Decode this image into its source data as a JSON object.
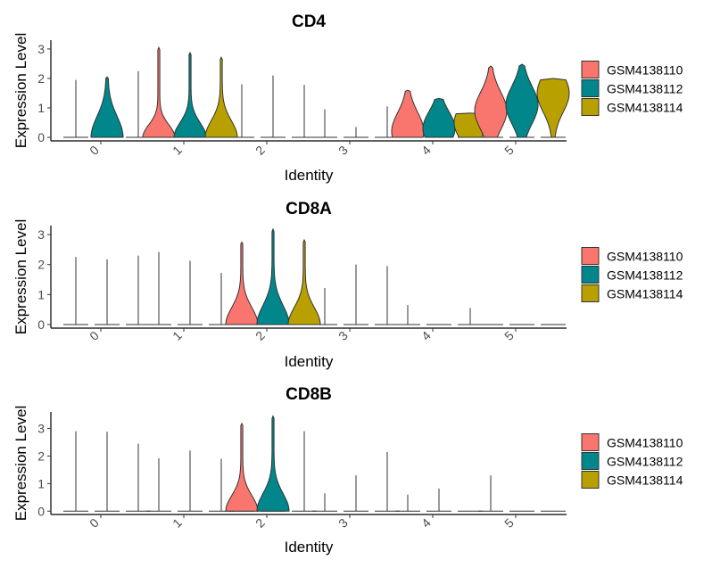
{
  "chart_data": [
    {
      "type": "violin",
      "title": "CD4",
      "xlabel": "Identity",
      "ylabel": "Expression Level",
      "categories": [
        "0",
        "1",
        "2",
        "3",
        "4",
        "5"
      ],
      "y_ticks": [
        "0",
        "1",
        "2",
        "3"
      ],
      "ylim": [
        -0.12,
        3.3
      ],
      "legend": {
        "placement": "right",
        "entries": [
          "GSM4138110",
          "GSM4138112",
          "GSM4138114"
        ]
      },
      "series": [
        {
          "name": "GSM4138110",
          "color": "#F8766D",
          "max": [
            1.95,
            3.05,
            1.8,
            0.95,
            1.6,
            2.42
          ],
          "peak": [
            0,
            0,
            0,
            0,
            0.2,
            0.9
          ],
          "spread": [
            0.4,
            0.6,
            0.3,
            0.3,
            0.9,
            0.9
          ]
        },
        {
          "name": "GSM4138112",
          "color": "#00868B",
          "max": [
            2.05,
            2.88,
            2.1,
            0.35,
            1.32,
            2.48
          ],
          "peak": [
            0,
            0,
            0,
            0,
            0.3,
            1.1
          ],
          "spread": [
            1.0,
            0.7,
            0.3,
            0.3,
            0.8,
            0.9
          ]
        },
        {
          "name": "GSM4138114",
          "color": "#B8A000",
          "max": [
            2.25,
            2.72,
            1.78,
            1.05,
            0.82,
            2.0
          ],
          "peak": [
            0,
            0,
            0,
            0,
            0.5,
            1.5
          ],
          "spread": [
            0.4,
            0.8,
            0.3,
            0.3,
            0.8,
            0.9
          ]
        }
      ]
    },
    {
      "type": "violin",
      "title": "CD8A",
      "xlabel": "Identity",
      "ylabel": "Expression Level",
      "categories": [
        "0",
        "1",
        "2",
        "3",
        "4",
        "5"
      ],
      "y_ticks": [
        "0",
        "1",
        "2",
        "3"
      ],
      "ylim": [
        -0.12,
        3.3
      ],
      "legend": {
        "placement": "right",
        "entries": [
          "GSM4138110",
          "GSM4138112",
          "GSM4138114"
        ]
      },
      "series": [
        {
          "name": "GSM4138110",
          "color": "#F8766D",
          "max": [
            2.25,
            2.42,
            2.75,
            1.22,
            0.65,
            0
          ],
          "peak": [
            0,
            0,
            0,
            0,
            0,
            0
          ],
          "spread": [
            0.3,
            0.3,
            0.8,
            0.3,
            0.3,
            0.3
          ]
        },
        {
          "name": "GSM4138112",
          "color": "#00868B",
          "max": [
            2.17,
            2.13,
            3.18,
            2.0,
            0,
            0
          ],
          "peak": [
            0,
            0,
            0,
            0,
            0,
            0
          ],
          "spread": [
            0.3,
            0.3,
            0.9,
            0.3,
            0.3,
            0.3
          ]
        },
        {
          "name": "GSM4138114",
          "color": "#B8A000",
          "max": [
            2.3,
            1.72,
            2.82,
            1.95,
            0.55,
            0
          ],
          "peak": [
            0,
            0,
            0,
            0,
            0,
            0
          ],
          "spread": [
            0.3,
            0.3,
            0.8,
            0.3,
            0.3,
            0.3
          ]
        }
      ]
    },
    {
      "type": "violin",
      "title": "CD8B",
      "xlabel": "Identity",
      "ylabel": "Expression Level",
      "categories": [
        "0",
        "1",
        "2",
        "3",
        "4",
        "5"
      ],
      "y_ticks": [
        "0",
        "1",
        "2",
        "3"
      ],
      "ylim": [
        -0.12,
        3.6
      ],
      "legend": {
        "placement": "right",
        "entries": [
          "GSM4138110",
          "GSM4138112",
          "GSM4138114"
        ]
      },
      "series": [
        {
          "name": "GSM4138110",
          "color": "#F8766D",
          "max": [
            2.9,
            1.92,
            3.18,
            0.65,
            0.6,
            1.3
          ],
          "peak": [
            0,
            0,
            0,
            0,
            0,
            0
          ],
          "spread": [
            0.3,
            0.3,
            0.8,
            0.3,
            0.3,
            0.3
          ]
        },
        {
          "name": "GSM4138112",
          "color": "#00868B",
          "max": [
            2.88,
            2.2,
            3.45,
            1.3,
            0.82,
            0
          ],
          "peak": [
            0,
            0,
            0,
            0,
            0,
            0
          ],
          "spread": [
            0.3,
            0.3,
            0.9,
            0.3,
            0.3,
            0.3
          ]
        },
        {
          "name": "GSM4138114",
          "color": "#B8A000",
          "max": [
            2.45,
            1.9,
            2.9,
            2.15,
            0,
            0
          ],
          "peak": [
            0,
            0,
            0,
            0,
            0,
            0
          ],
          "spread": [
            0.3,
            0.3,
            0.3,
            0.3,
            0.3,
            0.3
          ]
        }
      ]
    }
  ]
}
